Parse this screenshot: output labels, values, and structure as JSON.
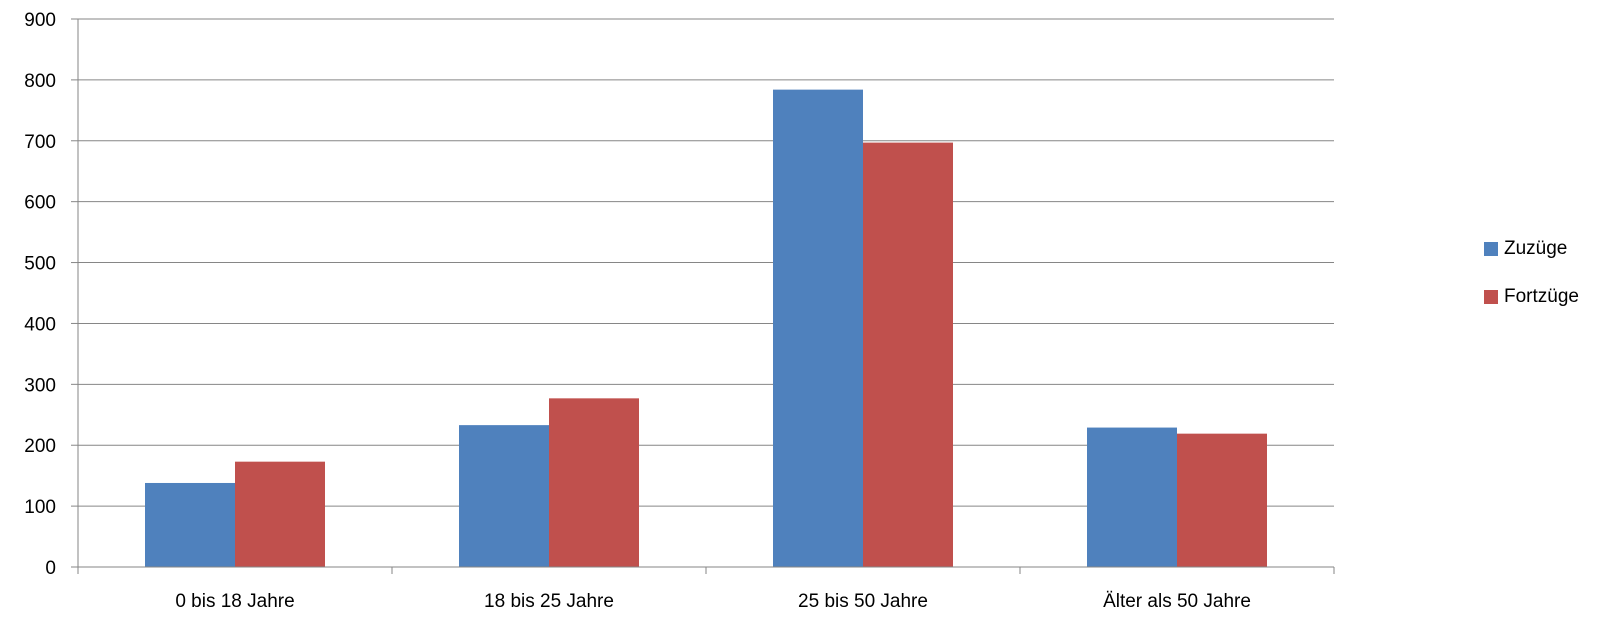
{
  "chart_data": {
    "type": "bar",
    "categories": [
      "0 bis 18 Jahre",
      "18 bis 25 Jahre",
      "25 bis 50 Jahre",
      "Älter als 50 Jahre"
    ],
    "series": [
      {
        "name": "Zuzüge",
        "color": "#4F81BD",
        "values": [
          138,
          233,
          784,
          229
        ]
      },
      {
        "name": "Fortzüge",
        "color": "#C0504D",
        "values": [
          173,
          277,
          697,
          219
        ]
      }
    ],
    "y_ticks": [
      "0",
      "100",
      "200",
      "300",
      "400",
      "500",
      "600",
      "700",
      "800",
      "900"
    ],
    "ylim": [
      0,
      900
    ],
    "grid": true,
    "legend_position": "right"
  }
}
